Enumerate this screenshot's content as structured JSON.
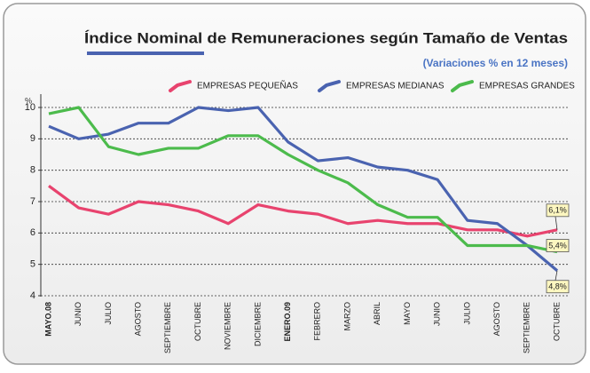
{
  "chart_data": {
    "type": "line",
    "title": "Índice Nominal de Remuneraciones según Tamaño de Ventas",
    "subtitle": "(Variaciones % en 12 meses)",
    "ylabel": "%",
    "categories": [
      "MAYO.08",
      "JUNIO",
      "JULIO",
      "AGOSTO",
      "SEPTIEMBRE",
      "OCTUBRE",
      "NOVIEMBRE",
      "DICIEMBRE",
      "ENERO.09",
      "FEBRERO",
      "MARZO",
      "ABRIL",
      "MAYO",
      "JUNIO",
      "JULIO",
      "AGOSTO",
      "SEPTIEMBRE",
      "OCTUBRE"
    ],
    "series": [
      {
        "name": "EMPRESAS PEQUEÑAS",
        "color": "#e8436e",
        "values": [
          7.5,
          6.8,
          6.6,
          7.0,
          6.9,
          6.7,
          6.3,
          6.9,
          6.7,
          6.6,
          6.3,
          6.4,
          6.3,
          6.3,
          6.1,
          6.1,
          5.9,
          6.1
        ],
        "value_labels": [
          null,
          null,
          null,
          null,
          null,
          null,
          null,
          null,
          null,
          null,
          null,
          null,
          null,
          null,
          null,
          null,
          null,
          "6,1%"
        ]
      },
      {
        "name": "EMPRESAS MEDIANAS",
        "color": "#4a63b0",
        "values": [
          9.4,
          9.0,
          9.15,
          9.5,
          9.5,
          10.0,
          9.9,
          10.0,
          8.9,
          8.3,
          8.4,
          8.1,
          8.0,
          7.7,
          6.4,
          6.3,
          5.6,
          4.8
        ],
        "value_labels": [
          null,
          null,
          null,
          null,
          null,
          null,
          null,
          null,
          null,
          null,
          null,
          null,
          null,
          null,
          null,
          null,
          null,
          "4,8%"
        ]
      },
      {
        "name": "EMPRESAS GRANDES",
        "color": "#4cbb4c",
        "values": [
          9.8,
          10.0,
          8.75,
          8.5,
          8.7,
          8.7,
          9.1,
          9.1,
          8.5,
          8.0,
          7.6,
          6.9,
          6.5,
          6.5,
          5.6,
          5.6,
          5.6,
          5.4
        ],
        "value_labels": [
          null,
          null,
          null,
          null,
          null,
          null,
          null,
          null,
          null,
          null,
          null,
          null,
          null,
          null,
          null,
          null,
          null,
          "5,4%"
        ]
      }
    ],
    "ylim": [
      4,
      10
    ],
    "yticks": [
      4,
      5,
      6,
      7,
      8,
      9,
      10
    ],
    "grid": true
  }
}
